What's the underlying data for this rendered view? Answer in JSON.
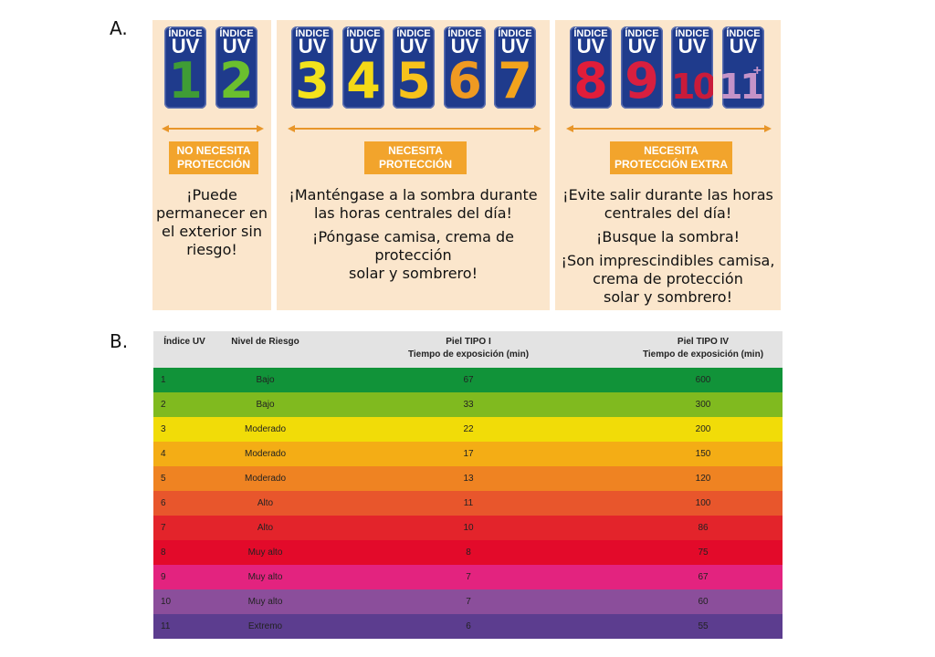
{
  "section_a_label": "A.",
  "section_b_label": "B.",
  "uv_header_word": "ÍNDICE",
  "uv_word": "UV",
  "panels": [
    {
      "cards": [
        {
          "num": "1",
          "color": "#3f9c35"
        },
        {
          "num": "2",
          "color": "#6bbf2e"
        }
      ],
      "badge": [
        "NO NECESITA",
        "PROTECCIÓN"
      ],
      "text": [
        "¡Puede",
        "permanecer en",
        "el exterior sin",
        "riesgo!"
      ]
    },
    {
      "cards": [
        {
          "num": "3",
          "color": "#f3e21c"
        },
        {
          "num": "4",
          "color": "#f4d917"
        },
        {
          "num": "5",
          "color": "#f7c21b"
        },
        {
          "num": "6",
          "color": "#ef9a22"
        },
        {
          "num": "7",
          "color": "#f3a31c"
        }
      ],
      "badge": [
        "NECESITA",
        "PROTECCIÓN"
      ],
      "text": [
        "¡Manténgase a la sombra durante",
        "las horas centrales del día!",
        "¡Póngase camisa, crema de protección",
        "solar y sombrero!"
      ]
    },
    {
      "cards": [
        {
          "num": "8",
          "color": "#e11d3a"
        },
        {
          "num": "9",
          "color": "#d81f3f"
        },
        {
          "num": "10",
          "color": "#c91b3a"
        },
        {
          "num": "11",
          "color": "#c493c8",
          "plus": "+"
        }
      ],
      "badge": [
        "NECESITA",
        "PROTECCIÓN EXTRA"
      ],
      "text": [
        "¡Evite salir durante las horas",
        "centrales del día!",
        "¡Busque la sombra!",
        "¡Son imprescindibles camisa,",
        "crema de protección",
        "solar y sombrero!"
      ]
    }
  ],
  "table": {
    "headers": {
      "index": "Índice UV",
      "risk": "Nivel de Riesgo",
      "type1_line1": "Piel TIPO I",
      "type1_line2": "Tiempo de exposición (min)",
      "type4_line1": "Piel TIPO IV",
      "type4_line2": "Tiempo de exposición (min)"
    },
    "rows": [
      {
        "index": "1",
        "risk": "Bajo",
        "type1": "67",
        "type4": "600",
        "color": "#119339"
      },
      {
        "index": "2",
        "risk": "Bajo",
        "type1": "33",
        "type4": "300",
        "color": "#80ba1f"
      },
      {
        "index": "3",
        "risk": "Moderado",
        "type1": "22",
        "type4": "200",
        "color": "#f1dc08"
      },
      {
        "index": "4",
        "risk": "Moderado",
        "type1": "17",
        "type4": "150",
        "color": "#f4ad15"
      },
      {
        "index": "5",
        "risk": "Moderado",
        "type1": "13",
        "type4": "120",
        "color": "#ef8322"
      },
      {
        "index": "6",
        "risk": "Alto",
        "type1": "11",
        "type4": "100",
        "color": "#e8562c"
      },
      {
        "index": "7",
        "risk": "Alto",
        "type1": "10",
        "type4": "86",
        "color": "#e3242b"
      },
      {
        "index": "8",
        "risk": "Muy alto",
        "type1": "8",
        "type4": "75",
        "color": "#e30a2a"
      },
      {
        "index": "9",
        "risk": "Muy alto",
        "type1": "7",
        "type4": "67",
        "color": "#e3237f"
      },
      {
        "index": "10",
        "risk": "Muy alto",
        "type1": "7",
        "type4": "60",
        "color": "#8b4e9b"
      },
      {
        "index": "11",
        "risk": "Extremo",
        "type1": "6",
        "type4": "55",
        "color": "#5c3d8f"
      }
    ]
  }
}
